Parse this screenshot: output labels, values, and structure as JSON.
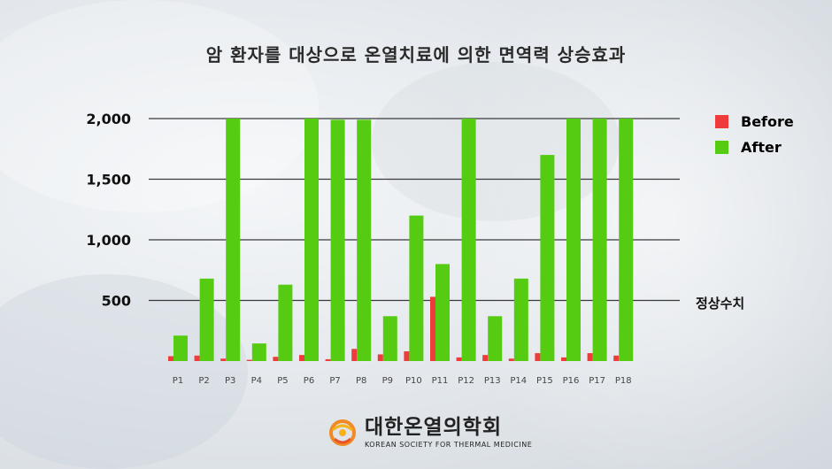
{
  "title": "암 환자를 대상으로 온열치료에 의한 면역력 상승효과",
  "colors": {
    "before": "#ee3b3b",
    "after": "#55cc11",
    "gridline": "#3a3a3a"
  },
  "legend": {
    "before_label": "Before",
    "after_label": "After"
  },
  "reference_label": "정상수치",
  "logo": {
    "name": "대한온열의학회",
    "subtitle": "KOREAN SOCIETY FOR THERMAL MEDICINE",
    "icon": "society-logo-icon"
  },
  "chart_data": {
    "type": "bar",
    "title": "암 환자를 대상으로 온열치료에 의한 면역력 상승효과",
    "categories": [
      "P1",
      "P2",
      "P3",
      "P4",
      "P5",
      "P6",
      "P7",
      "P8",
      "P9",
      "P10",
      "P11",
      "P12",
      "P13",
      "P14",
      "P15",
      "P16",
      "P17",
      "P18"
    ],
    "series": [
      {
        "name": "Before",
        "values": [
          40,
          45,
          20,
          10,
          35,
          50,
          15,
          100,
          55,
          80,
          530,
          30,
          50,
          20,
          65,
          30,
          65,
          45
        ]
      },
      {
        "name": "After",
        "values": [
          210,
          680,
          2000,
          145,
          630,
          2000,
          1990,
          1990,
          370,
          1200,
          800,
          2000,
          370,
          680,
          1700,
          2000,
          2000,
          2000
        ]
      }
    ],
    "yticks": [
      500,
      1000,
      1500,
      2000
    ],
    "ytick_labels": [
      "500",
      "1,000",
      "1,500",
      "2,000"
    ],
    "ylim": [
      0,
      2000
    ],
    "reference_line": {
      "value": 500,
      "label": "정상수치"
    },
    "legend_position": "top-right",
    "grid": true,
    "xlabel": "",
    "ylabel": ""
  }
}
